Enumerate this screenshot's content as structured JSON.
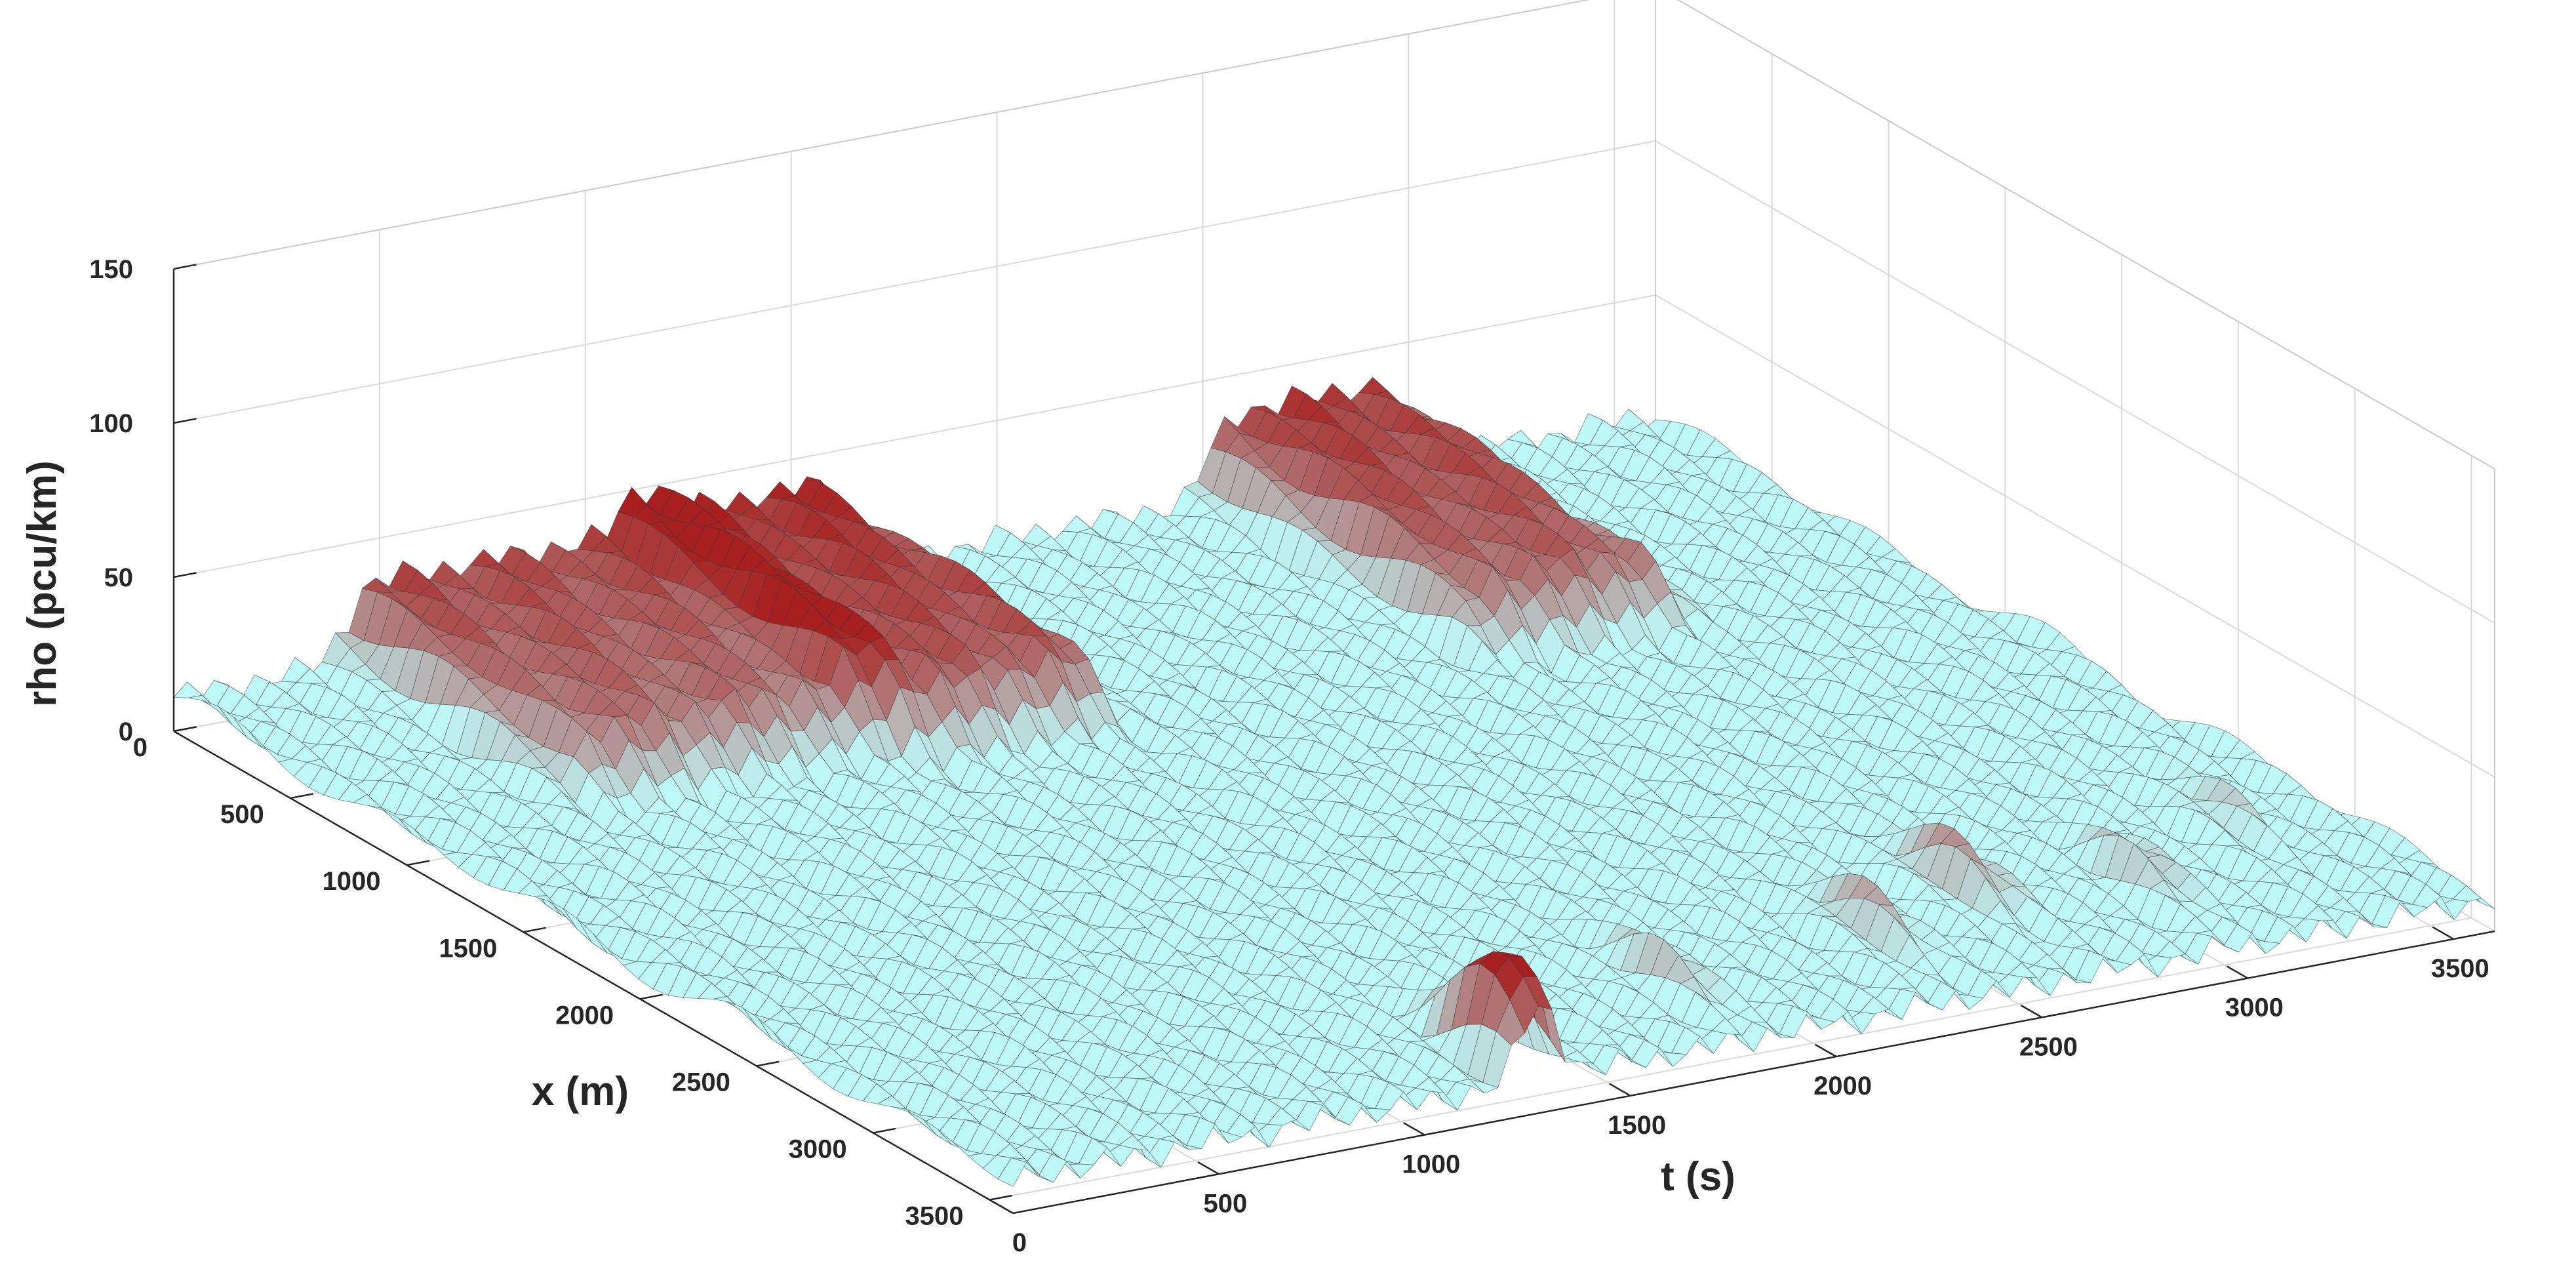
{
  "chart_data": {
    "type": "surface",
    "xlabel": "t (s)",
    "ylabel": "x (m)",
    "zlabel": "rho (pcu/km)",
    "xlim": [
      0,
      3600
    ],
    "ylim": [
      0,
      3600
    ],
    "zlim": [
      0,
      150
    ],
    "x_ticks": [
      "0",
      "500",
      "1000",
      "1500",
      "2000",
      "2500",
      "3000",
      "3500"
    ],
    "y_ticks": [
      "0",
      "500",
      "1000",
      "1500",
      "2000",
      "2500",
      "3000",
      "3500"
    ],
    "z_ticks": [
      "0",
      "50",
      "100",
      "150"
    ],
    "grid": true,
    "colormap": [
      "#bff8f8",
      "#a81f1f"
    ],
    "baseline_density": 11,
    "signal_stripe_period_s": 90,
    "signal_stripe_amplitude": 4,
    "queue_ridges": [
      {
        "t_start": 350,
        "t_end": 1220,
        "x_start": 0,
        "x_end": 1150,
        "peak_density": 36
      },
      {
        "t_start": 1050,
        "t_end": 1700,
        "x_start": 0,
        "x_end": 1250,
        "peak_density": 40
      },
      {
        "t_start": 2450,
        "t_end": 3050,
        "x_start": 0,
        "x_end": 1300,
        "peak_density": 38
      }
    ],
    "downstream_peaks": [
      {
        "t": 1280,
        "x": 3450,
        "peak_density": 48
      },
      {
        "t": 1820,
        "x": 3200,
        "peak_density": 22
      },
      {
        "t": 2350,
        "x": 3150,
        "peak_density": 24
      },
      {
        "t": 2650,
        "x": 3000,
        "peak_density": 28
      },
      {
        "t": 3000,
        "x": 3100,
        "peak_density": 22
      },
      {
        "t": 3350,
        "x": 2900,
        "peak_density": 18
      }
    ]
  }
}
